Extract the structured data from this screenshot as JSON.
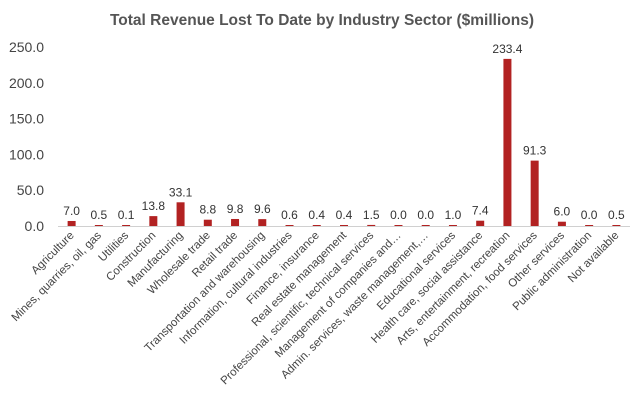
{
  "chart_data": {
    "type": "bar",
    "title": "Total Revenue Lost To Date by Industry Sector ($millions)",
    "xlabel": "",
    "ylabel": "",
    "ylim": [
      0,
      250
    ],
    "yticks": [
      "0.0",
      "50.0",
      "100.0",
      "150.0",
      "200.0",
      "250.0"
    ],
    "grid": false,
    "legend": "none",
    "bar_color": "#b22222",
    "categories": [
      "Agriculture",
      "Mines, quarries, oil, gas",
      "Utilities",
      "Construction",
      "Manufacturing",
      "Wholesale trade",
      "Retail trade",
      "Transportation and warehousing",
      "Information, cultural industries",
      "Finance, insurance",
      "Real estate management",
      "Professional, scientific, technical services",
      "Management of companies and…",
      "Admin. services, waste management,…",
      "Educational services",
      "Health care, social assistance",
      "Arts, entertainment, recreation",
      "Accommodation, food services",
      "Other services",
      "Public administration",
      "Not available"
    ],
    "values": [
      7.0,
      0.5,
      0.1,
      13.8,
      33.1,
      8.8,
      9.8,
      9.6,
      0.6,
      0.4,
      0.4,
      1.5,
      0.0,
      0.0,
      1.0,
      7.4,
      233.4,
      91.3,
      6.0,
      0.0,
      0.5
    ],
    "value_labels": [
      "7.0",
      "0.5",
      "0.1",
      "13.8",
      "33.1",
      "8.8",
      "9.8",
      "9.6",
      "0.6",
      "0.4",
      "0.4",
      "1.5",
      "0.0",
      "0.0",
      "1.0",
      "7.4",
      "233.4",
      "91.3",
      "6.0",
      "0.0",
      "0.5"
    ]
  }
}
